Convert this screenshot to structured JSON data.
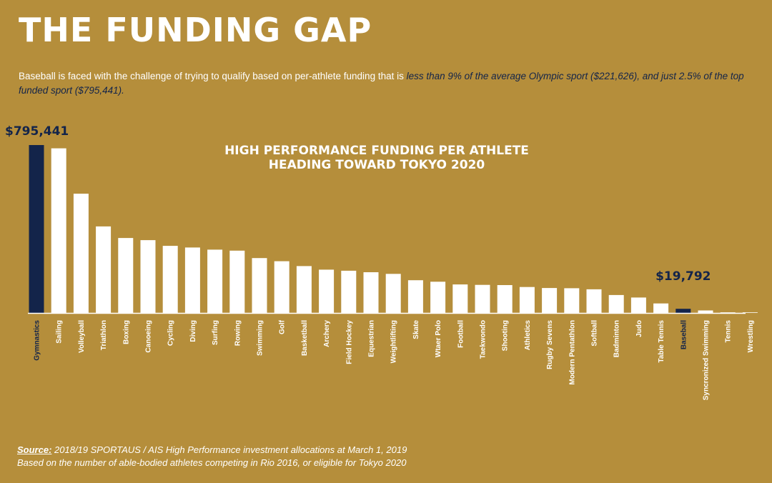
{
  "header": {
    "title": "THE FUNDING GAP",
    "intro_plain": "Baseball is faced with the challenge of trying to qualify based on per-athlete funding that is ",
    "intro_emphasis": "less than 9% of the average Olympic sport ($221,626), and just 2.5% of the top funded sport ($795,441)."
  },
  "colors": {
    "background": "#B58E3B",
    "bar": "#FFFFFF",
    "highlight": "#13244A",
    "text": "#FFFFFF"
  },
  "chart_data": {
    "type": "bar",
    "title_lines": [
      "HIGH PERFORMANCE FUNDING PER ATHLETE",
      "HEADING TOWARD TOKYO 2020"
    ],
    "categories": [
      "Gymnastics",
      "Sailing",
      "Volleyball",
      "Triathlon",
      "Boxing",
      "Canoeing",
      "Cycling",
      "Diving",
      "Surfing",
      "Rowing",
      "Swimming",
      "Golf",
      "Basketball",
      "Archery",
      "Field Hockey",
      "Equestrian",
      "Weightlifting",
      "Skate",
      "Wtaer Polo",
      "Football",
      "Taekwondo",
      "Shooting",
      "Athletics",
      "Rugby Sevens",
      "Modern Pentathlon",
      "Softball",
      "Badminton",
      "Judo",
      "Table Tennis",
      "Baseball",
      "Syncronized Swimming",
      "Tennis",
      "Wrestling"
    ],
    "values": [
      795441,
      780000,
      565000,
      410000,
      355000,
      345000,
      318000,
      310000,
      300000,
      295000,
      260000,
      245000,
      222000,
      205000,
      200000,
      193000,
      185000,
      155000,
      148000,
      135000,
      133000,
      132000,
      123000,
      118000,
      117000,
      112000,
      85000,
      73000,
      45000,
      19792,
      12000,
      1500,
      1000
    ],
    "highlighted": [
      "Gymnastics",
      "Baseball"
    ],
    "callouts": [
      {
        "category": "Gymnastics",
        "label": "$795,441"
      },
      {
        "category": "Baseball",
        "label": "$19,792"
      }
    ],
    "ylim": [
      0,
      795441
    ],
    "xlabel": "",
    "ylabel": "",
    "grid": false,
    "legend": "none"
  },
  "footer": {
    "source_label": "Source:",
    "source_text": " 2018/19 SPORTAUS / AIS High Performance investment allocations at March 1, 2019",
    "note": "Based on the number of able-bodied athletes competing in Rio 2016, or eligible for Tokyo 2020"
  }
}
